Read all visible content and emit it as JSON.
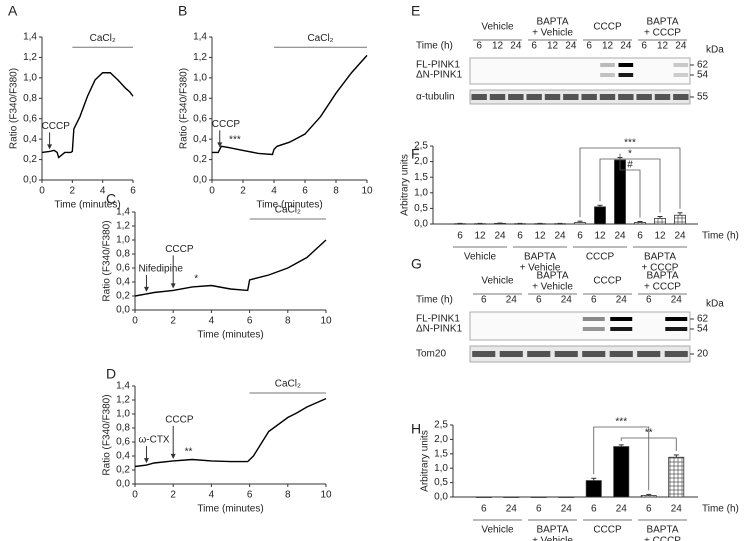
{
  "chart_data": [
    {
      "type": "line",
      "panel": "A",
      "xlabel": "Time (minutes)",
      "ylabel": "Ratio (F340/F380)",
      "xlim": [
        0,
        6
      ],
      "xticks": [
        0,
        2,
        4,
        6
      ],
      "ylim": [
        0,
        1.4
      ],
      "yticks": [
        {
          "value": 0,
          "label": "0,0"
        },
        {
          "value": 0.2,
          "label": "0,2"
        },
        {
          "value": 0.4,
          "label": "0,4"
        },
        {
          "value": 0.6,
          "label": "0,6"
        },
        {
          "value": 0.8,
          "label": "0,8"
        },
        {
          "value": 1.0,
          "label": "1,0"
        },
        {
          "value": 1.2,
          "label": "1,2"
        },
        {
          "value": 1.4,
          "label": "1,4"
        }
      ],
      "x": [
        0,
        0.5,
        0.8,
        1.0,
        1.1,
        1.5,
        1.9,
        2.0,
        2.1,
        2.5,
        3.0,
        3.5,
        4.0,
        4.5,
        5.0,
        5.5,
        5.8,
        6.0
      ],
      "series": [
        {
          "color": "#000000",
          "values": [
            0.27,
            0.28,
            0.29,
            0.27,
            0.22,
            0.27,
            0.27,
            0.28,
            0.5,
            0.62,
            0.82,
            0.98,
            1.05,
            1.05,
            0.98,
            0.9,
            0.86,
            0.82
          ]
        }
      ],
      "annotations": [
        {
          "text": "CCCP",
          "x": 0.5
        }
      ],
      "treatment": {
        "text": "CaCl₂",
        "range": [
          2,
          6
        ]
      }
    },
    {
      "type": "line",
      "panel": "B",
      "xlabel": "Time (minutes)",
      "ylabel": "Ratio (F340/F380)",
      "xlim": [
        0,
        10
      ],
      "xticks": [
        0,
        2,
        4,
        6,
        8,
        10
      ],
      "ylim": [
        0,
        1.4
      ],
      "yticks": [
        {
          "value": 0,
          "label": "0,0"
        },
        {
          "value": 0.2,
          "label": "0,2"
        },
        {
          "value": 0.4,
          "label": "0,4"
        },
        {
          "value": 0.6,
          "label": "0,6"
        },
        {
          "value": 0.8,
          "label": "0,8"
        },
        {
          "value": 1.0,
          "label": "1,0"
        },
        {
          "value": 1.2,
          "label": "1,2"
        },
        {
          "value": 1.4,
          "label": "1,4"
        }
      ],
      "x": [
        0,
        0.4,
        0.6,
        1.0,
        2.0,
        3.0,
        3.9,
        4.0,
        4.2,
        5.0,
        6.0,
        7.0,
        8.0,
        9.0,
        10.0
      ],
      "series": [
        {
          "color": "#000000",
          "values": [
            0.27,
            0.27,
            0.33,
            0.32,
            0.29,
            0.26,
            0.25,
            0.3,
            0.33,
            0.37,
            0.45,
            0.62,
            0.85,
            1.05,
            1.22
          ]
        }
      ],
      "annotations": [
        {
          "text": "CCCP",
          "x": 0.5
        }
      ],
      "stars": {
        "text": "***",
        "x": 1.1
      },
      "treatment": {
        "text": "CaCl₂",
        "range": [
          4,
          10
        ]
      }
    },
    {
      "type": "line",
      "panel": "C",
      "xlabel": "Time (minutes)",
      "ylabel": "Ratio (F340/F380)",
      "xlim": [
        0,
        10
      ],
      "xticks": [
        0,
        2,
        4,
        6,
        8,
        10
      ],
      "ylim": [
        0,
        1.4
      ],
      "yticks": [
        {
          "value": 0,
          "label": "0,0"
        },
        {
          "value": 0.2,
          "label": "0,2"
        },
        {
          "value": 0.4,
          "label": "0,4"
        },
        {
          "value": 0.6,
          "label": "0,6"
        },
        {
          "value": 0.8,
          "label": "0,8"
        },
        {
          "value": 1.0,
          "label": "1,0"
        },
        {
          "value": 1.2,
          "label": "1,2"
        },
        {
          "value": 1.4,
          "label": "1,4"
        }
      ],
      "x": [
        0,
        0.6,
        1.0,
        2.0,
        3.0,
        4.0,
        5.0,
        5.9,
        6.0,
        7.0,
        8.0,
        9.0,
        10.0
      ],
      "series": [
        {
          "color": "#000000",
          "values": [
            0.2,
            0.23,
            0.25,
            0.28,
            0.33,
            0.35,
            0.3,
            0.28,
            0.43,
            0.5,
            0.6,
            0.75,
            1.0
          ]
        }
      ],
      "annotations": [
        {
          "text": "Nifedipine",
          "x": 0.6
        },
        {
          "text": "CCCP",
          "x": 2.0
        }
      ],
      "stars": {
        "text": "*",
        "x": 3.1
      },
      "treatment": {
        "text": "CaCl₂",
        "range": [
          6,
          10
        ]
      }
    },
    {
      "type": "line",
      "panel": "D",
      "xlabel": "Time (minutes)",
      "ylabel": "Ratio (F340/F380)",
      "xlim": [
        0,
        10
      ],
      "xticks": [
        0,
        2,
        4,
        6,
        8,
        10
      ],
      "ylim": [
        0,
        1.4
      ],
      "yticks": [
        {
          "value": 0,
          "label": "0,0"
        },
        {
          "value": 0.2,
          "label": "0,2"
        },
        {
          "value": 0.4,
          "label": "0,4"
        },
        {
          "value": 0.6,
          "label": "0,6"
        },
        {
          "value": 0.8,
          "label": "0,8"
        },
        {
          "value": 1.0,
          "label": "1,0"
        },
        {
          "value": 1.2,
          "label": "1,2"
        },
        {
          "value": 1.4,
          "label": "1,4"
        }
      ],
      "x": [
        0,
        0.6,
        1.0,
        2.0,
        3.0,
        4.0,
        5.0,
        5.9,
        6.2,
        7.0,
        8.0,
        8.5,
        9.0,
        10.0
      ],
      "series": [
        {
          "color": "#000000",
          "values": [
            0.25,
            0.27,
            0.3,
            0.33,
            0.35,
            0.33,
            0.32,
            0.32,
            0.4,
            0.75,
            0.95,
            1.02,
            1.1,
            1.22
          ]
        }
      ],
      "annotations": [
        {
          "text": "ω-CTX",
          "x": 0.6
        },
        {
          "text": "CCCP",
          "x": 2.0
        }
      ],
      "stars": {
        "text": "**",
        "x": 2.6
      },
      "treatment": {
        "text": "CaCl₂",
        "range": [
          6,
          10
        ]
      }
    },
    {
      "type": "bar",
      "panel": "F",
      "ylabel": "Arbitrary units",
      "xlabel": "Time (h)",
      "ylim": [
        0,
        2.5
      ],
      "yticks": [
        {
          "value": 0,
          "label": "0,0"
        },
        {
          "value": 0.5,
          "label": "0,5"
        },
        {
          "value": 1.0,
          "label": "1,0"
        },
        {
          "value": 1.5,
          "label": "1,5"
        },
        {
          "value": 2.0,
          "label": "2,0"
        },
        {
          "value": 2.5,
          "label": "2,5"
        }
      ],
      "categories": [
        "6",
        "12",
        "24",
        "6",
        "12",
        "24",
        "6",
        "12",
        "24",
        "6",
        "12",
        "24"
      ],
      "groups": [
        [
          "Vehicle"
        ],
        [
          "BAPTA",
          "+ Vehicle"
        ],
        [
          "CCCP"
        ],
        [
          "BAPTA",
          "+ CCCP"
        ]
      ],
      "values": [
        0.01,
        0.01,
        0.02,
        0.01,
        0.01,
        0.01,
        0.05,
        0.55,
        2.05,
        0.05,
        0.18,
        0.28
      ],
      "errors": [
        0.01,
        0.01,
        0.01,
        0.01,
        0.01,
        0.01,
        0.04,
        0.05,
        0.08,
        0.03,
        0.06,
        0.08
      ],
      "fills": [
        "#ffffff",
        "#000000",
        "#000000",
        "#ffffff",
        "#000000",
        "#000000",
        "#ffffff",
        "#000000",
        "#000000",
        "hatch",
        "hatch",
        "hatch"
      ],
      "comparisons": [
        "***",
        "*",
        "#"
      ]
    },
    {
      "type": "bar",
      "panel": "H",
      "ylabel": "Arbitrary units",
      "xlabel": "Time (h)",
      "ylim": [
        0,
        2.5
      ],
      "yticks": [
        {
          "value": 0,
          "label": "0,0"
        },
        {
          "value": 0.5,
          "label": "0,5"
        },
        {
          "value": 1.0,
          "label": "1,0"
        },
        {
          "value": 1.5,
          "label": "1,5"
        },
        {
          "value": 2.0,
          "label": "2,0"
        },
        {
          "value": 2.5,
          "label": "2,5"
        }
      ],
      "categories": [
        "6",
        "24",
        "6",
        "24",
        "6",
        "24",
        "6",
        "24"
      ],
      "groups": [
        [
          "Vehicle"
        ],
        [
          "BAPTA",
          "+ Vehicle"
        ],
        [
          "CCCP"
        ],
        [
          "BAPTA",
          "+ CCCP"
        ]
      ],
      "values": [
        0.0,
        0.0,
        0.0,
        0.0,
        0.57,
        1.75,
        0.05,
        1.38
      ],
      "errors": [
        0.0,
        0.0,
        0.0,
        0.0,
        0.08,
        0.06,
        0.04,
        0.08
      ],
      "fills": [
        "#000000",
        "#000000",
        "#000000",
        "#000000",
        "#000000",
        "#000000",
        "hatch",
        "hatch"
      ],
      "comparisons": [
        "***",
        "**"
      ]
    }
  ],
  "blots": [
    {
      "panel": "E",
      "groups": [
        [
          "Vehicle"
        ],
        [
          "BAPTA",
          "+ Vehicle"
        ],
        [
          "CCCP"
        ],
        [
          "BAPTA",
          "+ CCCP"
        ]
      ],
      "time_label": "Time (h)",
      "times": [
        "6",
        "12",
        "24",
        "6",
        "12",
        "24",
        "6",
        "12",
        "24",
        "6",
        "12",
        "24"
      ],
      "rows": [
        "FL-PINK1",
        "ΔN-PINK1"
      ],
      "loading": "α-tubulin",
      "kda_label": "kDa",
      "markers": [
        62,
        54,
        55
      ]
    },
    {
      "panel": "G",
      "groups": [
        [
          "Vehicle"
        ],
        [
          "BAPTA",
          "+ Vehicle"
        ],
        [
          "CCCP"
        ],
        [
          "BAPTA",
          "+ CCCP"
        ]
      ],
      "time_label": "Time (h)",
      "times": [
        "6",
        "24",
        "6",
        "24",
        "6",
        "24",
        "6",
        "24"
      ],
      "rows": [
        "FL-PINK1",
        "ΔN-PINK1"
      ],
      "loading": "Tom20",
      "kda_label": "kDa",
      "markers": [
        62,
        54,
        20
      ]
    }
  ]
}
